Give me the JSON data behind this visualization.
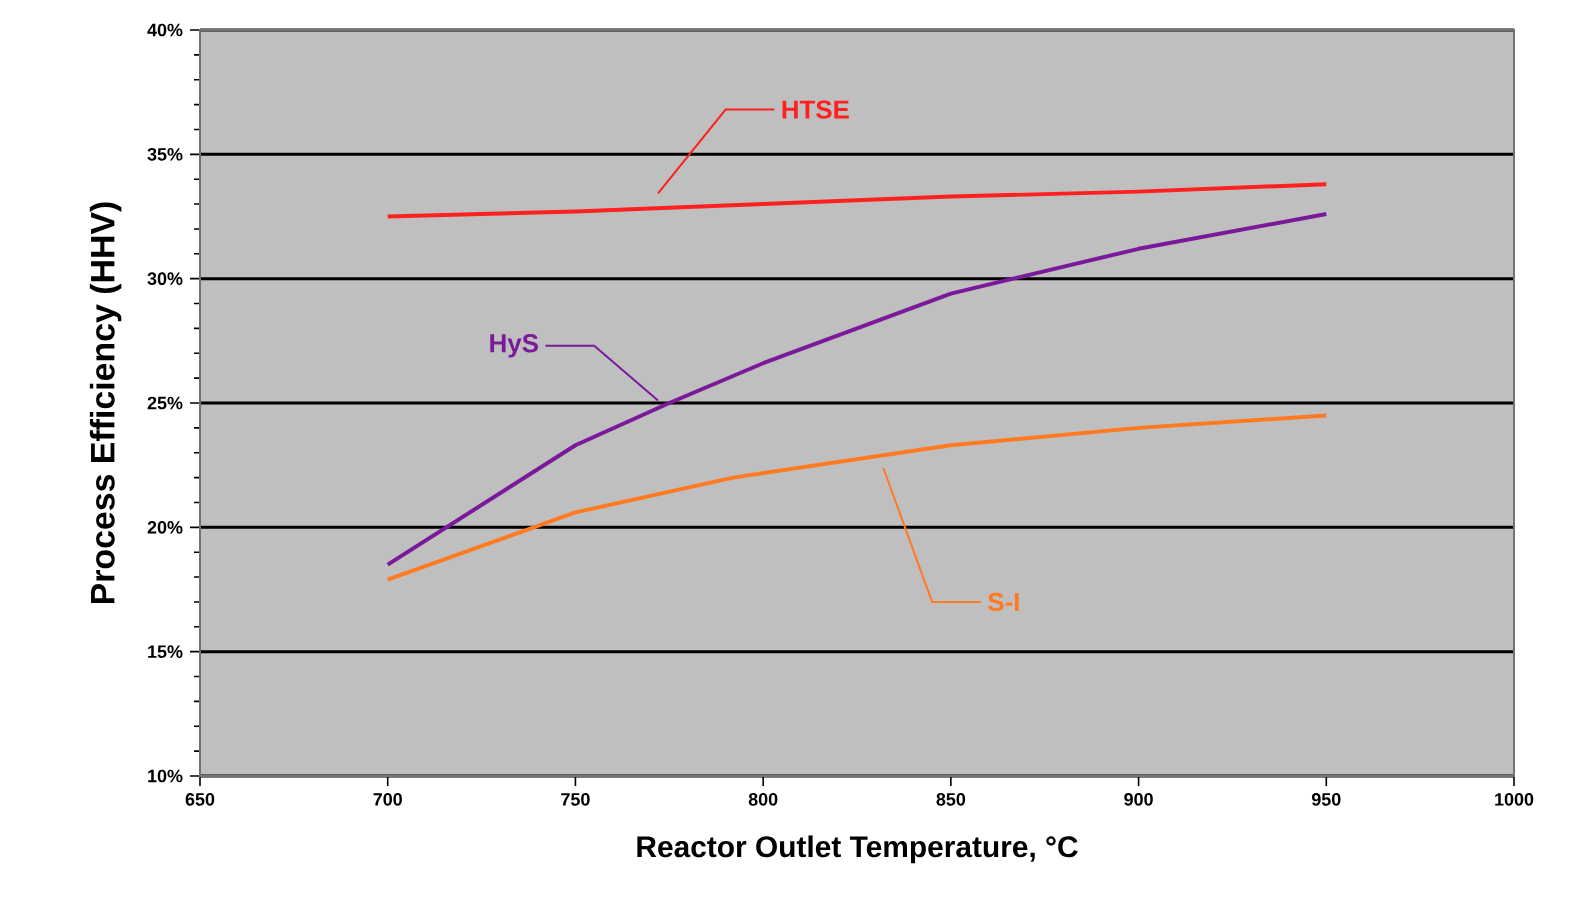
{
  "chart_data": {
    "type": "line",
    "xlabel": "Reactor Outlet Temperature, °C",
    "ylabel": "Process Efficiency (HHV)",
    "xlim": [
      650,
      1000
    ],
    "xticks": [
      650,
      700,
      750,
      800,
      850,
      900,
      950,
      1000
    ],
    "ylim": [
      10,
      40
    ],
    "yticks": [
      {
        "value": 10,
        "label": "10%"
      },
      {
        "value": 15,
        "label": "15%"
      },
      {
        "value": 20,
        "label": "20%"
      },
      {
        "value": 25,
        "label": "25%"
      },
      {
        "value": 30,
        "label": "30%"
      },
      {
        "value": 35,
        "label": "35%"
      },
      {
        "value": 40,
        "label": "40%"
      }
    ],
    "grid": "y",
    "marker": "none",
    "line_style": "solid",
    "series": [
      {
        "name": "HTSE",
        "color": "#ff2020",
        "x": [
          700,
          750,
          800,
          850,
          900,
          950
        ],
        "values": [
          32.5,
          32.7,
          33.0,
          33.3,
          33.5,
          33.8
        ]
      },
      {
        "name": "HyS",
        "color": "#7a1a9a",
        "x": [
          700,
          750,
          775,
          800,
          850,
          900,
          950
        ],
        "values": [
          18.5,
          23.3,
          25.0,
          26.6,
          29.4,
          31.2,
          32.6
        ]
      },
      {
        "name": "S-I",
        "color": "#ff7a20",
        "x": [
          700,
          750,
          792,
          850,
          900,
          950
        ],
        "values": [
          17.9,
          20.6,
          22.0,
          23.3,
          24.0,
          24.5
        ]
      }
    ]
  }
}
